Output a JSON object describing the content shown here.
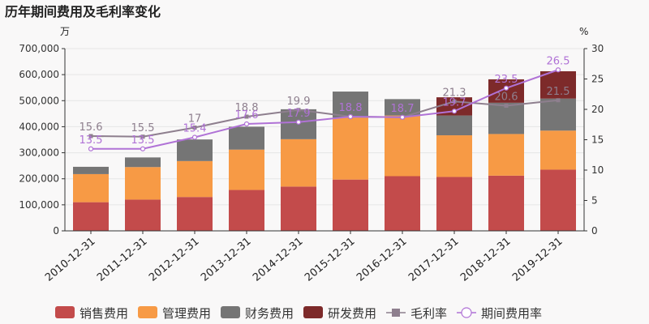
{
  "chart_data": {
    "type": "bar",
    "stacked": true,
    "title": "历年期间费用及毛利率变化",
    "left_unit": "万",
    "right_unit": "%",
    "categories": [
      "2010-12-31",
      "2011-12-31",
      "2012-12-31",
      "2013-12-31",
      "2014-12-31",
      "2015-12-31",
      "2016-12-31",
      "2017-12-31",
      "2018-12-31",
      "2019-12-31"
    ],
    "ylim_left": [
      0,
      700000
    ],
    "yticks_left": [
      "0",
      "100,000",
      "200,000",
      "300,000",
      "400,000",
      "500,000",
      "600,000",
      "700,000"
    ],
    "ylim_right": [
      0,
      30
    ],
    "yticks_right": [
      "0",
      "5",
      "10",
      "15",
      "20",
      "25",
      "30"
    ],
    "grid": true,
    "legend_position": "bottom",
    "series": [
      {
        "name": "销售费用",
        "kind": "bar",
        "color": "#c34b4b",
        "values": [
          110000,
          120000,
          130000,
          157000,
          170000,
          197000,
          210000,
          207000,
          212000,
          235000
        ]
      },
      {
        "name": "管理费用",
        "kind": "bar",
        "color": "#f79a45",
        "values": [
          108000,
          125000,
          138000,
          155000,
          182000,
          238000,
          233000,
          160000,
          160000,
          150000
        ]
      },
      {
        "name": "财务费用",
        "kind": "bar",
        "color": "#757575",
        "values": [
          28000,
          37000,
          83000,
          88000,
          115000,
          100000,
          63000,
          76000,
          120000,
          123000
        ]
      },
      {
        "name": "研发费用",
        "kind": "bar",
        "color": "#7d2a2a",
        "values": [
          0,
          0,
          0,
          0,
          0,
          0,
          0,
          70000,
          90000,
          105000
        ]
      },
      {
        "name": "毛利率",
        "kind": "line",
        "color": "#8e7f8e",
        "axis": "right",
        "values": [
          15.6,
          15.5,
          17,
          18.8,
          19.9,
          18.8,
          18.7,
          21.3,
          20.6,
          21.5
        ],
        "labels": [
          "15.6",
          "15.5",
          "17",
          "18.8",
          "19.9",
          "",
          "",
          "21.3",
          "20.6",
          "21.5"
        ]
      },
      {
        "name": "期间费用率",
        "kind": "line",
        "color": "#b072d6",
        "axis": "right",
        "values": [
          13.5,
          13.5,
          15.4,
          17.6,
          17.9,
          18.8,
          18.7,
          19.7,
          23.5,
          26.5
        ],
        "labels": [
          "13.5",
          "13.5",
          "15.4",
          "17.6",
          "17.9",
          "18.8",
          "18.7",
          "19.7",
          "23.5",
          "26.5"
        ]
      }
    ]
  }
}
